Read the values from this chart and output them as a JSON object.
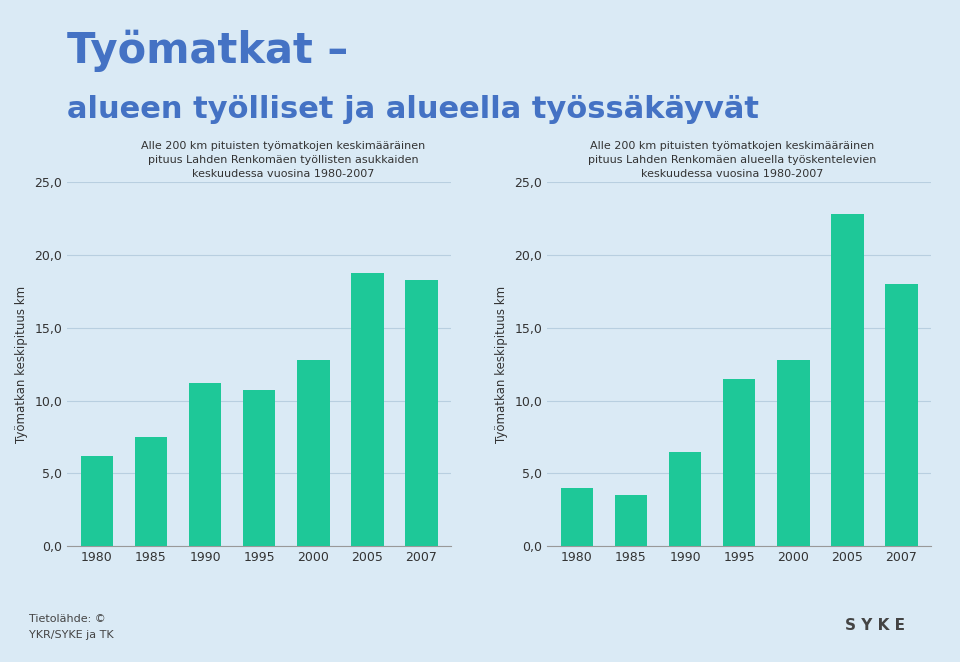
{
  "title_line1": "Työmatkat –",
  "title_line2": "alueen työlliset ja alueella työssäkäyvät",
  "title_color": "#4472c4",
  "background_color": "#daeaf5",
  "chart1_subtitle": "Alle 200 km pituisten työmatkojen keskimääräinen\npituus Lahden Renkomäen työllisten asukkaiden\nkeskuudessa vuosina 1980-2007",
  "chart2_subtitle": "Alle 200 km pituisten työmatkojen keskimääräinen\npituus Lahden Renkomäen alueella työskentelevien\nkeskuudessa vuosina 1980-2007",
  "ylabel": "Työmatkan keskipituus km",
  "years": [
    "1980",
    "1985",
    "1990",
    "1995",
    "2000",
    "2005",
    "2007"
  ],
  "values1": [
    6.2,
    7.5,
    11.2,
    10.7,
    12.8,
    18.8,
    18.3
  ],
  "values2": [
    4.0,
    3.5,
    6.5,
    11.5,
    12.8,
    22.8,
    18.0
  ],
  "bar_color": "#1ec898",
  "ylim": [
    0,
    25
  ],
  "yticks": [
    0.0,
    5.0,
    10.0,
    15.0,
    20.0,
    25.0
  ],
  "ytick_labels": [
    "0,0",
    "5,0",
    "10,0",
    "15,0",
    "20,0",
    "25,0"
  ],
  "grid_color": "#b8cfe0",
  "spine_color": "#999999",
  "footer_text1": "Tietolähde: ©",
  "footer_text2": "YKR/SYKE ja TK",
  "footer_color": "#444444",
  "bottom_bar_color": "#6a8fad",
  "subtitle_color": "#333333"
}
